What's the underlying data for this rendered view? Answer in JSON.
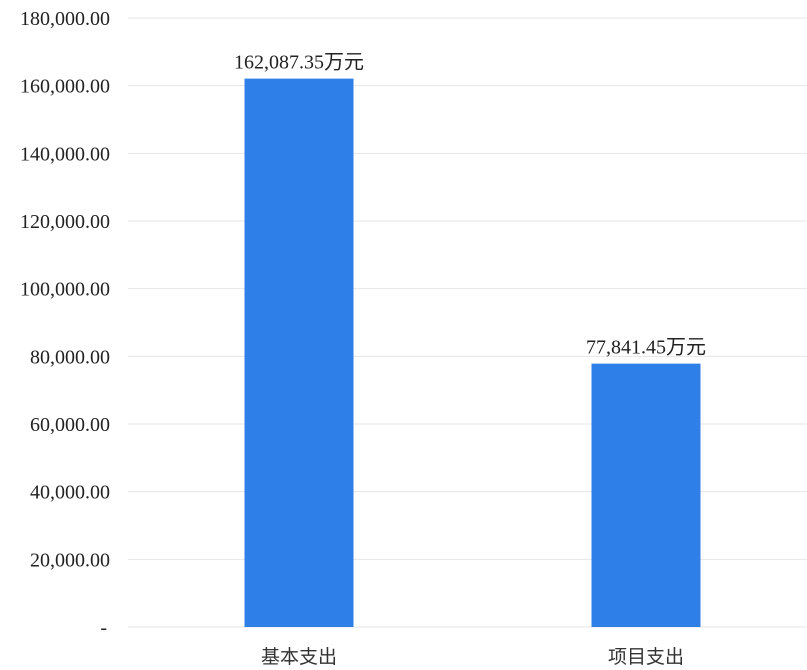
{
  "chart_data": {
    "type": "bar",
    "categories": [
      "基本支出",
      "项目支出"
    ],
    "values": [
      162087.35,
      77841.45
    ],
    "data_labels": [
      "162,087.35万元",
      "77,841.45万元"
    ],
    "ylim": [
      0,
      180000
    ],
    "yticks": [
      0,
      20000,
      40000,
      60000,
      80000,
      100000,
      120000,
      140000,
      160000,
      180000
    ],
    "ytick_labels": [
      "-",
      "20,000.00",
      "40,000.00",
      "60,000.00",
      "80,000.00",
      "100,000.00",
      "120,000.00",
      "140,000.00",
      "160,000.00",
      "180,000.00"
    ],
    "title": "",
    "xlabel": "",
    "ylabel": "",
    "grid": true,
    "legend": "none",
    "bar_color": "#2f7fe8"
  }
}
